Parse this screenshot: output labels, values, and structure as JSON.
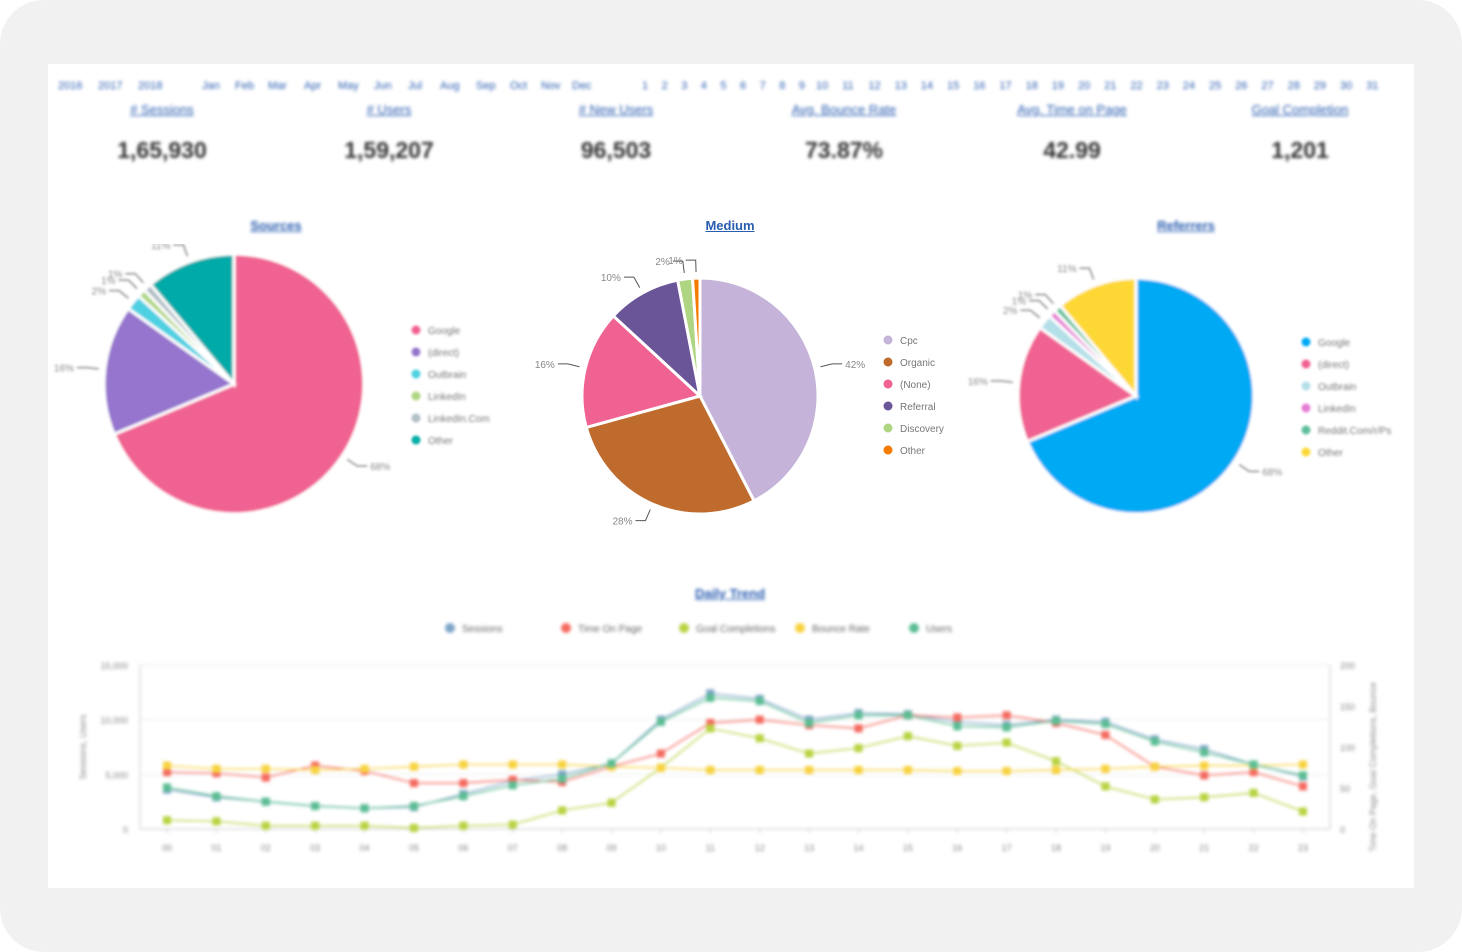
{
  "filters": {
    "years": [
      "2016",
      "2017",
      "2018"
    ],
    "months": [
      "Jan",
      "Feb",
      "Mar",
      "Apr",
      "May",
      "Jun",
      "Jul",
      "Aug",
      "Sep",
      "Oct",
      "Nov",
      "Dec"
    ],
    "days": [
      "1",
      "2",
      "3",
      "4",
      "5",
      "6",
      "7",
      "8",
      "9",
      "10",
      "11",
      "12",
      "13",
      "14",
      "15",
      "16",
      "17",
      "18",
      "19",
      "20",
      "21",
      "22",
      "23",
      "24",
      "25",
      "26",
      "27",
      "28",
      "29",
      "30",
      "31"
    ]
  },
  "kpis": [
    {
      "label": "# Sessions",
      "value": "1,65,930"
    },
    {
      "label": "# Users",
      "value": "1,59,207"
    },
    {
      "label": "# New Users",
      "value": "96,503"
    },
    {
      "label": "Avg. Bounce Rate",
      "value": "73.87%"
    },
    {
      "label": "Avg. Time on Page",
      "value": "42.99"
    },
    {
      "label": "Goal Completion",
      "value": "1,201"
    }
  ],
  "pies": {
    "sources": {
      "title": "Sources"
    },
    "medium": {
      "title": "Medium"
    },
    "referrers": {
      "title": "Referrers"
    }
  },
  "trend": {
    "title": "Daily Trend"
  },
  "chart_data": [
    {
      "type": "pie",
      "title": "Sources",
      "labels": [
        "Google",
        "(direct)",
        "Outbrain",
        "LinkedIn",
        "LinkedIn.Com",
        "Other"
      ],
      "values": [
        68,
        16,
        2,
        1,
        1,
        11
      ],
      "colors": [
        "#f06292",
        "#9575cd",
        "#4dd0e1",
        "#aed581",
        "#b0bec5",
        "#00aaa8"
      ],
      "slice_labels": [
        "68%",
        "16%",
        "2%",
        "1%",
        "1%",
        "11%"
      ],
      "legend": "right"
    },
    {
      "type": "pie",
      "title": "Medium",
      "labels": [
        "Cpc",
        "Organic",
        "(None)",
        "Referral",
        "Discovery",
        "Other"
      ],
      "values": [
        42,
        28,
        16,
        10,
        2,
        1
      ],
      "colors": [
        "#c5b3d9",
        "#bf6b2e",
        "#f06292",
        "#6a5598",
        "#aed581",
        "#f57c00"
      ],
      "slice_labels": [
        "42%",
        "28%",
        "16%",
        "10%",
        "2%",
        "1%"
      ],
      "legend": "right"
    },
    {
      "type": "pie",
      "title": "Referrers",
      "labels": [
        "Google",
        "(direct)",
        "Outbrain",
        "LinkedIn",
        "Reddit.Com/r/Ps",
        "Other"
      ],
      "values": [
        68,
        16,
        2,
        1,
        1,
        11
      ],
      "colors": [
        "#03a9f4",
        "#f06292",
        "#b2dfe8",
        "#e57bd3",
        "#5dbf9a",
        "#fdd835"
      ],
      "slice_labels": [
        "68%",
        "16%",
        "2%",
        "1%",
        "1%",
        "11%"
      ],
      "legend": "right"
    },
    {
      "type": "line",
      "title": "Daily Trend",
      "x": [
        "00",
        "01",
        "02",
        "03",
        "04",
        "05",
        "06",
        "07",
        "08",
        "09",
        "10",
        "11",
        "12",
        "13",
        "14",
        "15",
        "16",
        "17",
        "18",
        "19",
        "20",
        "21",
        "22",
        "23"
      ],
      "ylabel": "Sessions, Users",
      "ylim": [
        0,
        15000
      ],
      "yticks": [
        "0",
        "5,000",
        "10,000",
        "15,000"
      ],
      "y2label": "Time On Page, Goal Completions, Bounce",
      "y2lim": [
        0,
        200
      ],
      "y2ticks": [
        "0",
        "50",
        "100",
        "150",
        "200"
      ],
      "legend": "top",
      "series": [
        {
          "name": "Sessions",
          "axis": "left",
          "color": "#7fa4c8",
          "values": [
            3600,
            2900,
            2500,
            2100,
            1900,
            2000,
            3200,
            4400,
            5000,
            6000,
            10000,
            12400,
            11900,
            10000,
            10600,
            10500,
            9800,
            9500,
            10000,
            9800,
            8200,
            7300,
            5900,
            4800
          ]
        },
        {
          "name": "Time On Page",
          "axis": "left",
          "color": "#f46a60",
          "values": [
            5200,
            5100,
            4700,
            5800,
            5300,
            4200,
            4200,
            4500,
            4300,
            5700,
            6900,
            9700,
            10000,
            9500,
            9200,
            10400,
            10200,
            10400,
            9700,
            8600,
            5700,
            4900,
            5200,
            3900
          ]
        },
        {
          "name": "Goal Completions",
          "axis": "left",
          "color": "#b7d342",
          "values": [
            800,
            700,
            300,
            300,
            300,
            100,
            300,
            400,
            1700,
            2400,
            5600,
            9200,
            8300,
            6900,
            7400,
            8500,
            7600,
            7900,
            6200,
            3900,
            2700,
            2900,
            3300,
            1600
          ]
        },
        {
          "name": "Bounce Rate",
          "axis": "left",
          "color": "#f7d23e",
          "values": [
            5800,
            5500,
            5500,
            5400,
            5500,
            5700,
            5900,
            5900,
            5900,
            5700,
            5600,
            5400,
            5400,
            5400,
            5400,
            5400,
            5300,
            5300,
            5400,
            5500,
            5700,
            5800,
            5800,
            5900
          ]
        },
        {
          "name": "Users",
          "axis": "left",
          "color": "#5bbd93",
          "values": [
            3800,
            3000,
            2500,
            2100,
            1900,
            2100,
            3000,
            4000,
            4600,
            6000,
            9800,
            12000,
            11700,
            9700,
            10400,
            10400,
            9400,
            9300,
            9900,
            9600,
            8000,
            7000,
            5900,
            4900
          ]
        }
      ]
    }
  ]
}
